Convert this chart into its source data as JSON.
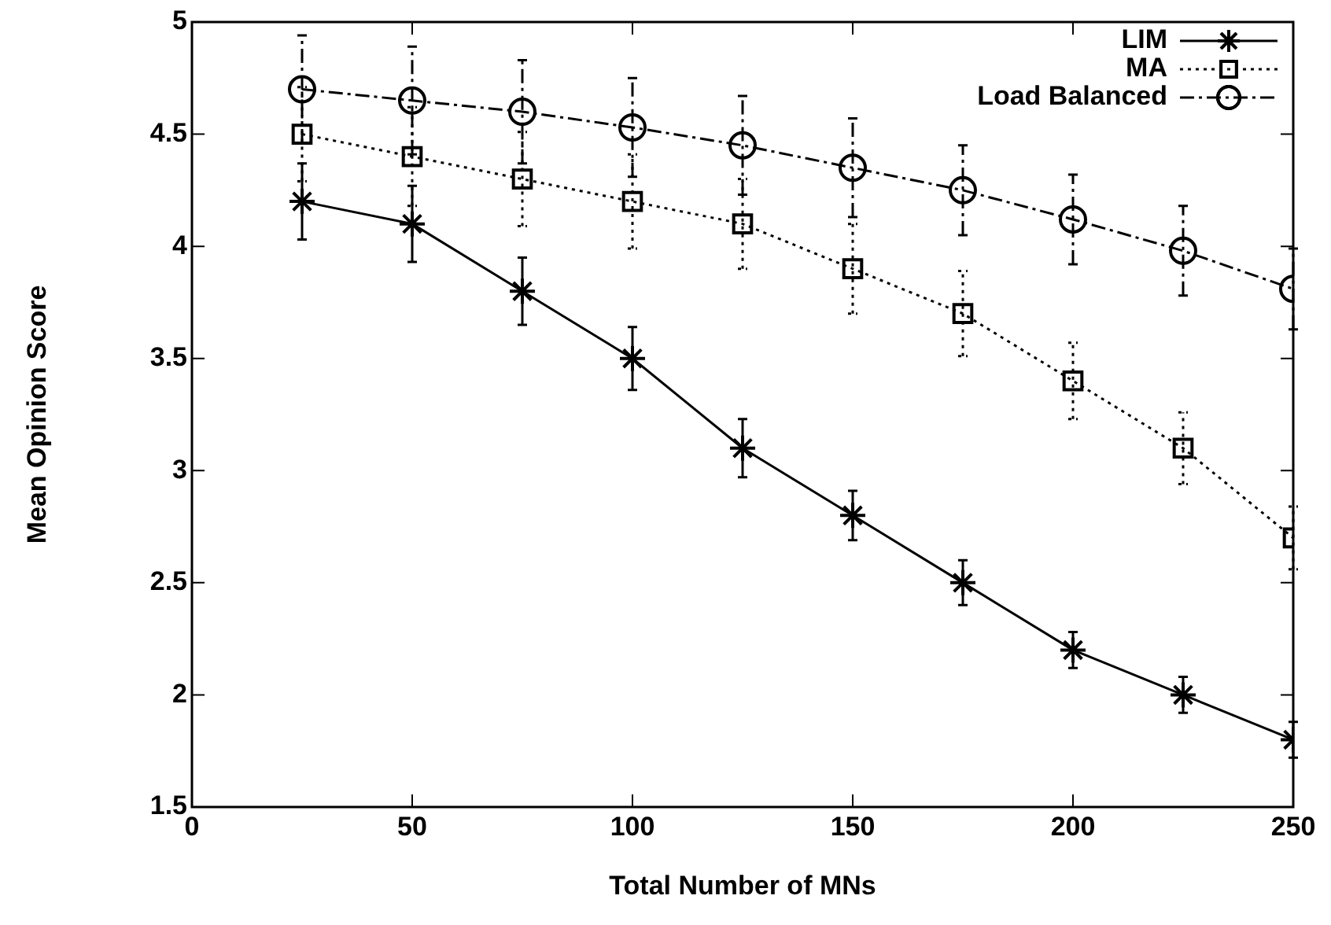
{
  "chart_data": {
    "type": "line",
    "xlabel": "Total Number of MNs",
    "ylabel": "Mean Opinion Score",
    "x": [
      25,
      50,
      75,
      100,
      125,
      150,
      175,
      200,
      225,
      250
    ],
    "xlim": [
      0,
      250
    ],
    "xticks": [
      0,
      50,
      100,
      150,
      200,
      250
    ],
    "ylim": [
      1.5,
      5
    ],
    "yticks": [
      1.5,
      2,
      2.5,
      3,
      3.5,
      4,
      4.5,
      5
    ],
    "grid": false,
    "legend": "top right",
    "series": [
      {
        "name": "LIM",
        "color": "#000000",
        "marker": "cross",
        "line_style": "solid",
        "values": [
          4.2,
          4.1,
          3.8,
          3.5,
          3.1,
          2.8,
          2.5,
          2.2,
          2.0,
          1.8
        ],
        "errors": [
          0.17,
          0.17,
          0.15,
          0.14,
          0.13,
          0.11,
          0.1,
          0.08,
          0.08,
          0.08
        ]
      },
      {
        "name": "MA",
        "color": "#000000",
        "marker": "square",
        "line_style": "dotted",
        "values": [
          4.5,
          4.4,
          4.3,
          4.2,
          4.1,
          3.9,
          3.7,
          3.4,
          3.1,
          2.7
        ],
        "errors": [
          0.21,
          0.22,
          0.21,
          0.21,
          0.2,
          0.2,
          0.19,
          0.17,
          0.16,
          0.14
        ]
      },
      {
        "name": "Load Balanced",
        "color": "#000000",
        "marker": "circle",
        "line_style": "dashed",
        "values": [
          4.7,
          4.65,
          4.6,
          4.53,
          4.45,
          4.35,
          4.25,
          4.12,
          3.98,
          3.81
        ],
        "errors": [
          0.24,
          0.24,
          0.23,
          0.22,
          0.22,
          0.22,
          0.2,
          0.2,
          0.2,
          0.18
        ]
      }
    ]
  }
}
